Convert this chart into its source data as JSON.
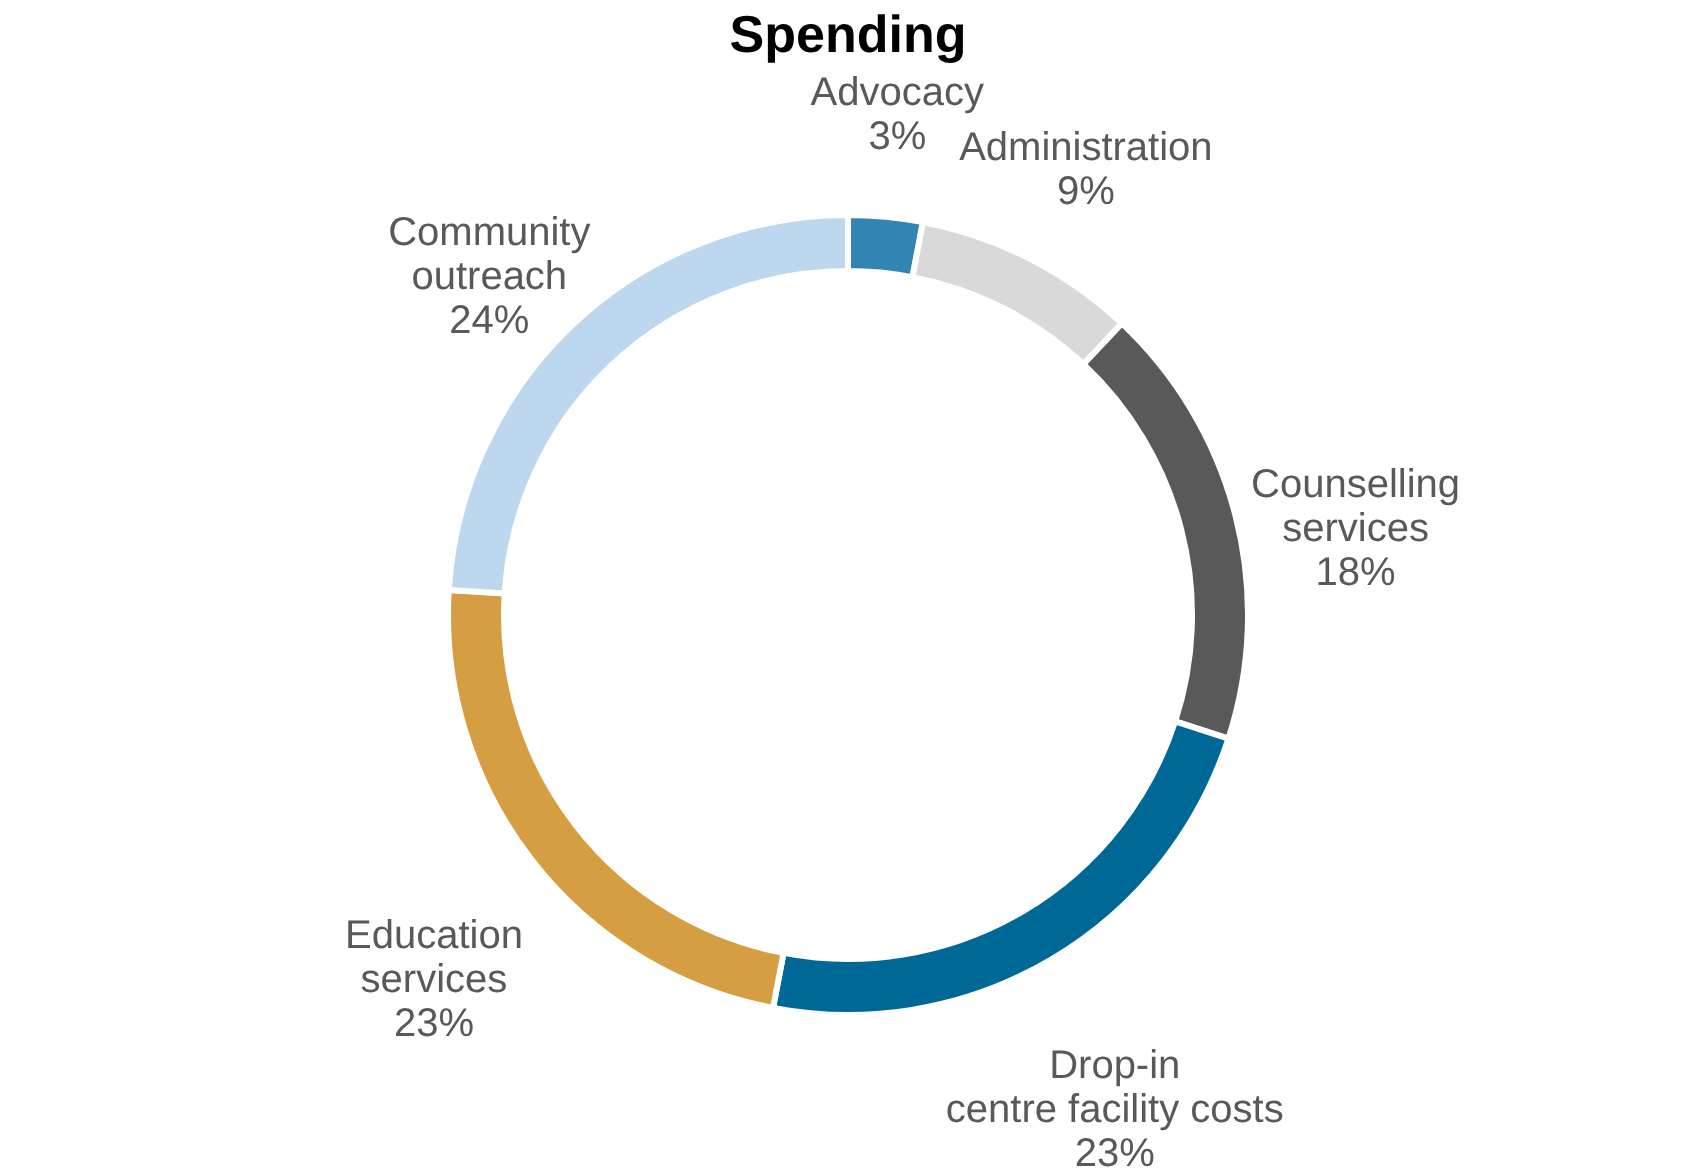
{
  "chart_data": {
    "type": "donut",
    "title": "Spending",
    "categories": [
      "Advocacy",
      "Administration",
      "Counselling services",
      "Drop-in centre facility costs",
      "Education services",
      "Community outreach"
    ],
    "values": [
      3,
      9,
      18,
      23,
      23,
      24
    ],
    "value_labels": [
      "3%",
      "9%",
      "18%",
      "23%",
      "23%",
      "24%"
    ],
    "colors": [
      "#3185b2",
      "#d9d9d9",
      "#595959",
      "#006896",
      "#d59e42",
      "#bdd7ee"
    ],
    "legend": false
  }
}
